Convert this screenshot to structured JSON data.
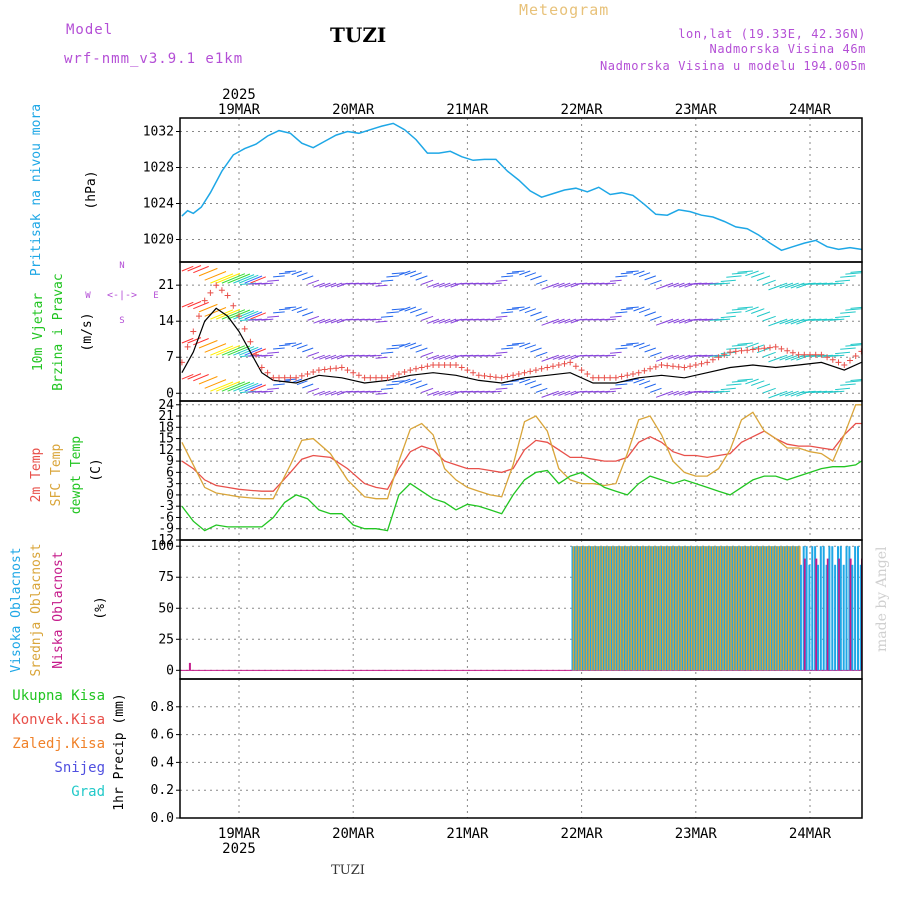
{
  "header": {
    "model_label": "Model",
    "model_name": "wrf-nmm_v3.9.1 e1km",
    "station": "TUZI",
    "title": "Meteogram",
    "coords": "lon,lat (19.33E, 42.36N)",
    "elevation": "Nadmorska Visina 46m",
    "model_elevation": "Nadmorska Visina u modelu 194.005m",
    "credit": "made by Angel",
    "footer_station": "TUZI"
  },
  "colors": {
    "pressure": "#1ea7e6",
    "t2m": "#e8504a",
    "sfc": "#d9a53a",
    "dewp": "#22c522",
    "high_cloud": "#1ea7e6",
    "mid_cloud": "#d9a53a",
    "low_cloud": "#c51a8a",
    "wind_label": "#22c522",
    "model": "#b44fd6",
    "meteogram": "#e8c27a",
    "precip_total": "#22c522",
    "precip_conv": "#e8504a",
    "precip_frozen": "#f0822a",
    "snow": "#5050e0",
    "hail": "#22c9c9"
  },
  "chart_data": [
    {
      "type": "line",
      "panel": "pressure",
      "ylabel_name": "Pritisak na nivou mora",
      "ylabel_unit": "(hPa)",
      "x_unit": "days since 19MAR 00",
      "yticks": [
        1020,
        1024,
        1028,
        1032
      ],
      "ylim": [
        1017.5,
        1033.5
      ],
      "series": [
        {
          "name": "Pritisak na nivou mora",
          "x": [
            -0.5,
            -0.45,
            -0.4,
            -0.33,
            -0.25,
            -0.15,
            -0.05,
            0.05,
            0.15,
            0.25,
            0.35,
            0.45,
            0.55,
            0.65,
            0.75,
            0.85,
            0.95,
            1.05,
            1.15,
            1.25,
            1.35,
            1.45,
            1.55,
            1.65,
            1.75,
            1.85,
            1.95,
            2.05,
            2.15,
            2.25,
            2.35,
            2.45,
            2.55,
            2.65,
            2.75,
            2.85,
            2.95,
            3.05,
            3.15,
            3.25,
            3.35,
            3.45,
            3.55,
            3.65,
            3.75,
            3.85,
            3.95,
            4.05,
            4.15,
            4.25,
            4.35,
            4.45,
            4.55,
            4.65,
            4.75,
            4.85,
            4.95,
            5.05,
            5.15,
            5.25,
            5.35,
            5.45,
            5.5
          ],
          "values": [
            1022.6,
            1023.2,
            1022.9,
            1023.6,
            1025.2,
            1027.6,
            1029.4,
            1030.1,
            1030.6,
            1031.5,
            1032.1,
            1031.8,
            1030.7,
            1030.2,
            1030.9,
            1031.6,
            1032.0,
            1031.8,
            1032.2,
            1032.6,
            1032.9,
            1032.2,
            1031.1,
            1029.6,
            1029.6,
            1029.8,
            1029.2,
            1028.8,
            1028.9,
            1028.9,
            1027.6,
            1026.6,
            1025.4,
            1024.7,
            1025.1,
            1025.5,
            1025.7,
            1025.3,
            1025.8,
            1025.0,
            1025.2,
            1024.9,
            1023.9,
            1022.8,
            1022.7,
            1023.3,
            1023.1,
            1022.7,
            1022.5,
            1022.0,
            1021.4,
            1021.2,
            1020.5,
            1019.6,
            1018.8,
            1019.2,
            1019.6,
            1019.9,
            1019.2,
            1018.9,
            1019.1,
            1018.9,
            1018.6
          ]
        }
      ]
    },
    {
      "type": "line",
      "panel": "wind",
      "ylabel_name": "10m Vjetar",
      "ylabel_name2": "Brzina i Pravac",
      "ylabel_unit": "(m/s)",
      "compass": {
        "n": "N",
        "s": "S",
        "e": "E",
        "w": "W"
      },
      "x_unit": "days since 19MAR 00",
      "yticks": [
        0,
        7,
        14,
        21
      ],
      "ylim": [
        -1.5,
        25.5
      ],
      "series": [
        {
          "name": "speed",
          "x": [
            -0.5,
            -0.4,
            -0.3,
            -0.2,
            -0.1,
            0.0,
            0.1,
            0.2,
            0.3,
            0.5,
            0.7,
            0.9,
            1.1,
            1.3,
            1.5,
            1.7,
            1.9,
            2.1,
            2.3,
            2.5,
            2.7,
            2.9,
            3.1,
            3.3,
            3.5,
            3.7,
            3.9,
            4.1,
            4.3,
            4.5,
            4.7,
            4.9,
            5.1,
            5.3,
            5.5
          ],
          "values": [
            4,
            8,
            14,
            16.5,
            15,
            12,
            8,
            4,
            2.5,
            2,
            3.5,
            3,
            2,
            2.5,
            3.5,
            4,
            3.5,
            2.5,
            2,
            3,
            3.5,
            4,
            2,
            2,
            3,
            3.5,
            3,
            4,
            5,
            5.5,
            5,
            5.5,
            6,
            4.5,
            6.5
          ]
        },
        {
          "name": "gust",
          "x": [
            -0.5,
            -0.4,
            -0.3,
            -0.2,
            -0.1,
            0.0,
            0.1,
            0.2,
            0.3,
            0.5,
            0.7,
            0.9,
            1.1,
            1.3,
            1.5,
            1.7,
            1.9,
            2.1,
            2.3,
            2.5,
            2.7,
            2.9,
            3.1,
            3.3,
            3.5,
            3.7,
            3.9,
            4.1,
            4.3,
            4.5,
            4.7,
            4.9,
            5.1,
            5.3,
            5.5
          ],
          "values": [
            6,
            12,
            18,
            21,
            19,
            15,
            10,
            5,
            3,
            3,
            4.5,
            5,
            3,
            3,
            4.5,
            5.5,
            5.5,
            3.5,
            3,
            4,
            5,
            6,
            3,
            3,
            4,
            5.5,
            5,
            6,
            8,
            8.5,
            9,
            7.5,
            7.5,
            5.5,
            9
          ]
        }
      ]
    },
    {
      "type": "line",
      "panel": "temperature",
      "ylabel_names": [
        "2m Temp",
        "SFC Temp",
        "dewpt Temp"
      ],
      "ylabel_unit": "(C)",
      "x_unit": "days since 19MAR 00",
      "yticks": [
        -12,
        -9,
        -6,
        -3,
        0,
        3,
        6,
        9,
        12,
        15,
        18,
        21,
        24
      ],
      "ylim": [
        -12,
        25
      ],
      "series": [
        {
          "name": "2m Temp",
          "x": [
            -0.5,
            -0.4,
            -0.3,
            -0.2,
            -0.1,
            0.0,
            0.1,
            0.2,
            0.3,
            0.45,
            0.55,
            0.65,
            0.8,
            0.95,
            1.1,
            1.2,
            1.3,
            1.4,
            1.5,
            1.6,
            1.7,
            1.8,
            1.9,
            2.0,
            2.1,
            2.2,
            2.3,
            2.4,
            2.5,
            2.6,
            2.7,
            2.8,
            2.9,
            3.0,
            3.1,
            3.2,
            3.3,
            3.4,
            3.5,
            3.6,
            3.7,
            3.8,
            3.9,
            4.0,
            4.1,
            4.2,
            4.3,
            4.4,
            4.5,
            4.6,
            4.7,
            4.8,
            4.9,
            5.0,
            5.1,
            5.2,
            5.3,
            5.4,
            5.5
          ],
          "values": [
            9,
            7,
            4,
            2.5,
            2,
            1.5,
            1.2,
            1,
            1,
            6,
            9.5,
            10.5,
            10,
            7,
            3,
            2,
            1.5,
            7,
            11.5,
            13,
            12,
            9,
            8,
            7,
            7,
            6.5,
            6,
            7,
            12,
            14.5,
            14,
            12,
            10,
            10,
            9.5,
            9,
            9,
            10,
            14,
            15.5,
            14,
            11.5,
            10.5,
            10.5,
            10,
            10.5,
            11,
            14,
            15.5,
            17,
            15,
            13.5,
            13,
            13,
            12.5,
            12,
            16,
            19,
            19
          ]
        },
        {
          "name": "SFC Temp",
          "x": [
            -0.5,
            -0.4,
            -0.3,
            -0.2,
            -0.1,
            0.0,
            0.1,
            0.2,
            0.3,
            0.45,
            0.55,
            0.65,
            0.8,
            0.95,
            1.1,
            1.2,
            1.3,
            1.4,
            1.5,
            1.6,
            1.7,
            1.8,
            1.9,
            2.0,
            2.1,
            2.2,
            2.3,
            2.4,
            2.5,
            2.6,
            2.7,
            2.8,
            2.9,
            3.0,
            3.1,
            3.2,
            3.3,
            3.4,
            3.5,
            3.6,
            3.7,
            3.8,
            3.9,
            4.0,
            4.1,
            4.2,
            4.3,
            4.4,
            4.5,
            4.6,
            4.7,
            4.8,
            4.9,
            5.0,
            5.1,
            5.2,
            5.3,
            5.4,
            5.5
          ],
          "values": [
            14,
            8,
            2,
            0.5,
            0,
            -0.5,
            -0.8,
            -1,
            -1,
            8,
            14.5,
            15,
            11,
            4,
            -0.5,
            -1,
            -1,
            9,
            17.5,
            19,
            16,
            7,
            4,
            2,
            1,
            0,
            -0.5,
            8,
            19.5,
            21,
            17,
            7,
            4,
            3,
            3,
            2.5,
            3,
            11,
            20,
            21,
            16,
            9,
            6,
            5,
            5,
            7,
            12,
            20,
            22,
            17,
            15,
            12.5,
            12.5,
            11.5,
            11,
            9,
            16,
            24,
            24
          ]
        },
        {
          "name": "dewpt Temp",
          "x": [
            -0.5,
            -0.4,
            -0.3,
            -0.2,
            -0.1,
            0.0,
            0.1,
            0.2,
            0.3,
            0.4,
            0.5,
            0.6,
            0.7,
            0.8,
            0.9,
            1.0,
            1.1,
            1.2,
            1.3,
            1.4,
            1.5,
            1.6,
            1.7,
            1.8,
            1.9,
            2.0,
            2.1,
            2.2,
            2.3,
            2.4,
            2.5,
            2.6,
            2.7,
            2.8,
            2.9,
            3.0,
            3.1,
            3.2,
            3.3,
            3.4,
            3.5,
            3.6,
            3.7,
            3.8,
            3.9,
            4.0,
            4.1,
            4.2,
            4.3,
            4.4,
            4.5,
            4.6,
            4.7,
            4.8,
            4.9,
            5.0,
            5.1,
            5.2,
            5.3,
            5.4,
            5.5
          ],
          "values": [
            -3,
            -7,
            -9.5,
            -8,
            -8.5,
            -8.5,
            -8.5,
            -8.5,
            -6,
            -2,
            0,
            -1,
            -4,
            -5,
            -5,
            -8,
            -9,
            -9,
            -9.5,
            0,
            3,
            1,
            -1,
            -2,
            -4,
            -2.5,
            -3,
            -4,
            -5,
            0,
            4,
            6,
            6.5,
            3,
            5,
            6,
            4,
            2,
            1,
            0,
            3,
            5,
            4,
            3,
            4,
            3,
            2,
            1,
            0,
            2,
            4,
            5,
            5,
            4,
            5,
            6,
            7,
            7.5,
            7.5,
            8,
            10
          ]
        }
      ]
    },
    {
      "type": "bar",
      "panel": "cloud",
      "ylabel_names": [
        "Visoka Oblacnost",
        "Srednja Oblacnost",
        "Niska Oblacnost"
      ],
      "ylabel_unit": "(%)",
      "x_unit": "days since 19MAR 00",
      "yticks": [
        0,
        25,
        50,
        75,
        100
      ],
      "ylim": [
        -7,
        105
      ],
      "summary": [
        {
          "range": [
            -0.5,
            2.92
          ],
          "high": 0,
          "mid": 0,
          "low": 0
        },
        {
          "range": [
            2.92,
            4.92
          ],
          "high": 100,
          "mid": 100,
          "low": 0,
          "note": "dense bars near 100%"
        },
        {
          "range": [
            4.92,
            5.5
          ],
          "high": 90,
          "mid": 100,
          "low": 90,
          "note": "scattered bars"
        }
      ]
    },
    {
      "type": "bar",
      "panel": "precip",
      "ylabel": "1hr Precip (mm)",
      "legend": [
        "Ukupna Kisa",
        "Konvek.Kisa",
        "Zaledj.Kisa",
        "Snijeg",
        "Grad"
      ],
      "yticks": [
        0,
        0.2,
        0.4,
        0.6,
        0.8
      ],
      "ylim": [
        0,
        1.0
      ],
      "values": []
    }
  ],
  "x_axis": {
    "year": "2025",
    "days": [
      "19MAR",
      "20MAR",
      "21MAR",
      "22MAR",
      "23MAR",
      "24MAR"
    ]
  }
}
